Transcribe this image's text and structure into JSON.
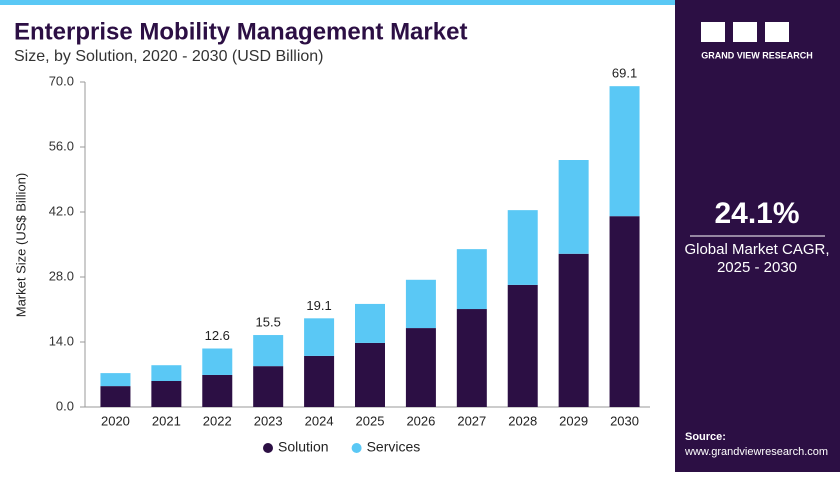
{
  "chart_data": {
    "type": "stacked_bar",
    "title": "Enterprise Mobility Management Market",
    "subtitle": "Size, by Solution, 2020 - 2030 (USD Billion)",
    "y_label": "Market Size (US$ Billion)",
    "categories": [
      "2020",
      "2021",
      "2022",
      "2023",
      "2024",
      "2025",
      "2026",
      "2027",
      "2028",
      "2029",
      "2030"
    ],
    "series": [
      {
        "name": "Solution",
        "color": "#2c0f44",
        "values": [
          4.5,
          5.6,
          6.9,
          8.8,
          11.0,
          13.8,
          17.0,
          21.1,
          26.3,
          33.0,
          41.1
        ]
      },
      {
        "name": "Services",
        "color": "#5ac8f5",
        "values": [
          2.8,
          3.4,
          5.7,
          6.7,
          8.1,
          8.4,
          10.4,
          12.9,
          16.1,
          20.2,
          28.0
        ]
      }
    ],
    "total_labels": [
      null,
      null,
      "12.6",
      "15.5",
      "19.1",
      null,
      null,
      null,
      null,
      null,
      "69.1"
    ],
    "ylim": [
      0,
      70
    ],
    "yticks": [
      {
        "value": 0,
        "label": "0.0"
      },
      {
        "value": 14,
        "label": "14.0"
      },
      {
        "value": 28,
        "label": "28.0"
      },
      {
        "value": 42,
        "label": "42.0"
      },
      {
        "value": 56,
        "label": "56.0"
      },
      {
        "value": 70,
        "label": "70.0"
      }
    ],
    "legend": "bottom"
  },
  "sidebar": {
    "brand": "GRAND VIEW RESEARCH",
    "cagr": "24.1%",
    "cagr_label": "Global Market CAGR,",
    "cagr_period": "2025 - 2030",
    "source_label": "Source:",
    "source": "www.grandviewresearch.com"
  }
}
